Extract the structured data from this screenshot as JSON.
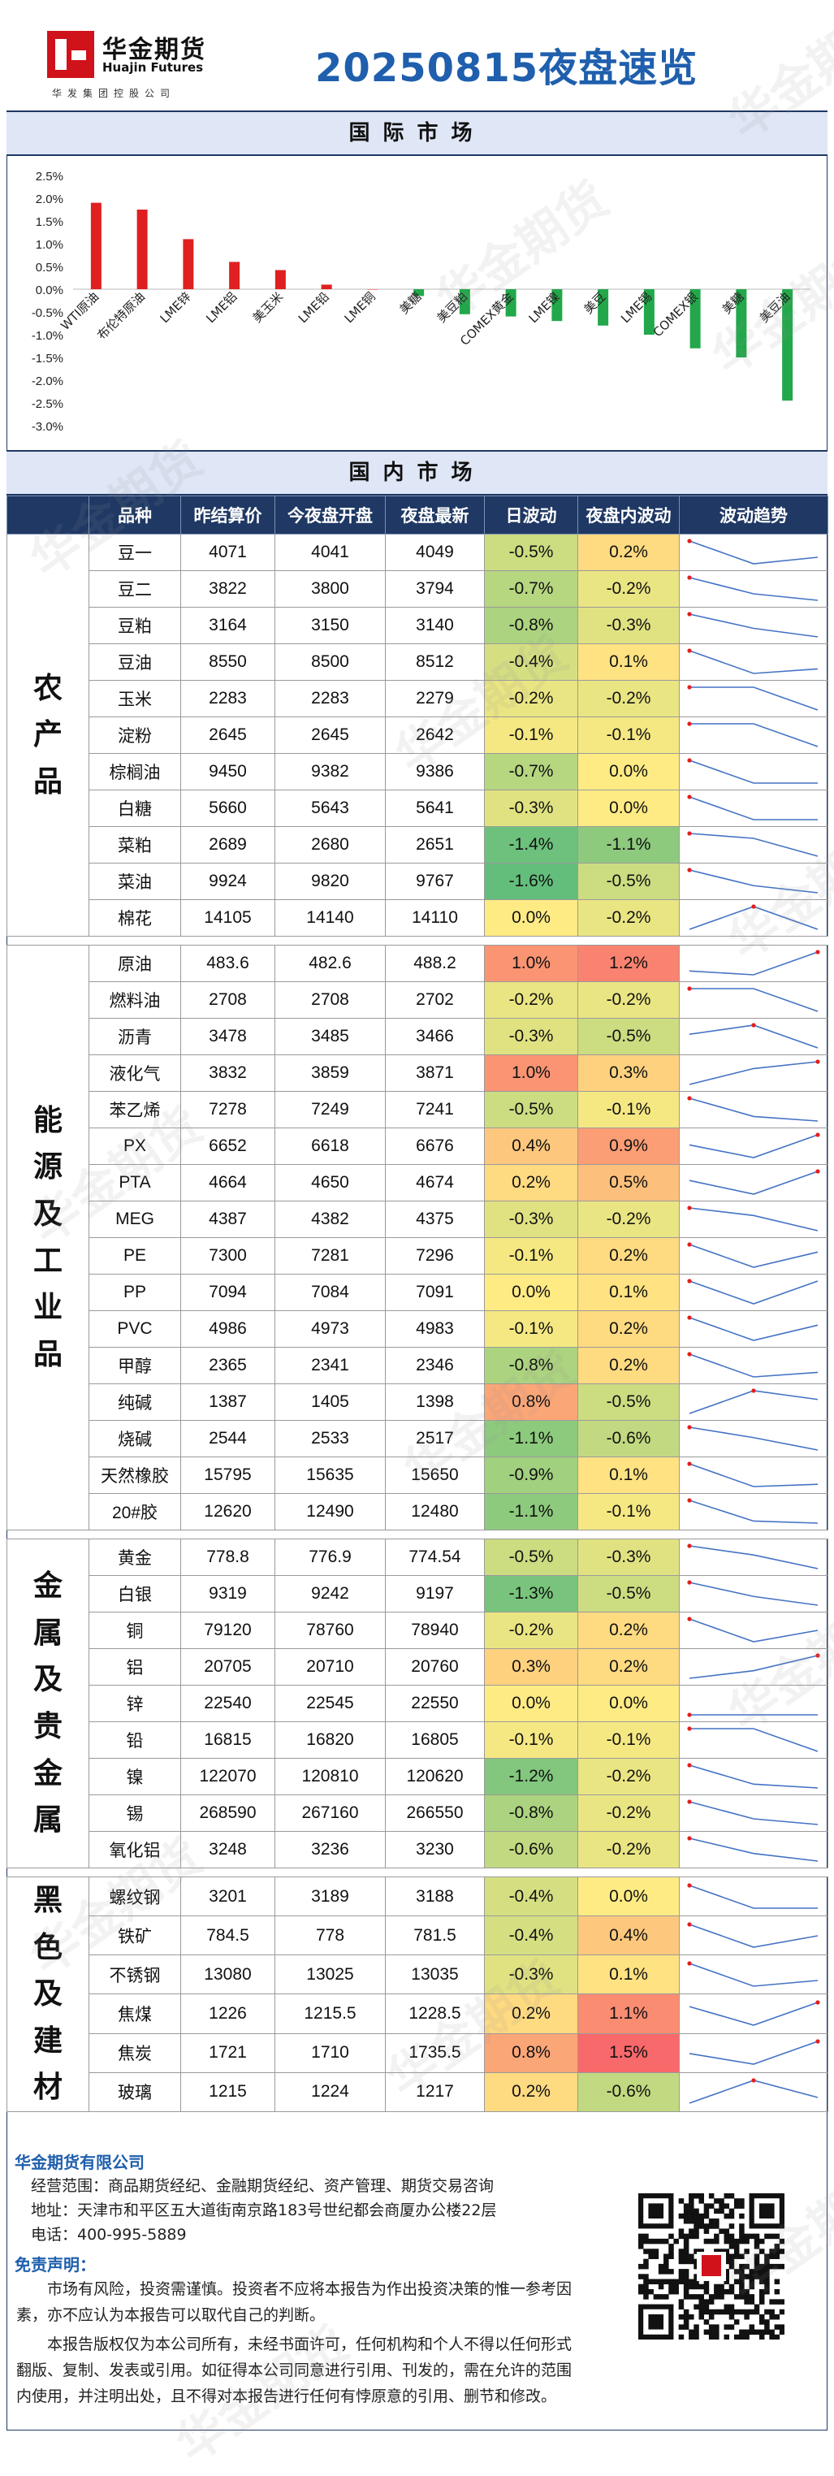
{
  "header": {
    "logo_cn": "华金期货",
    "logo_en": "Huajin Futures",
    "logo_sub": "华发集团控股公司",
    "title": "20250815夜盘速览"
  },
  "intl_section_title": "国际市场",
  "domestic_section_title": "国内市场",
  "chart_data": {
    "type": "bar",
    "title": "",
    "xlabel": "",
    "ylabel": "",
    "ylim": [
      -3.0,
      2.5
    ],
    "y_ticks": [
      "2.5%",
      "2.0%",
      "1.5%",
      "1.0%",
      "0.5%",
      "0.0%",
      "-0.5%",
      "-1.0%",
      "-1.5%",
      "-2.0%",
      "-2.5%",
      "-3.0%"
    ],
    "categories": [
      "WTI原油",
      "布伦特原油",
      "LME锌",
      "LME铝",
      "美玉米",
      "LME铅",
      "LME铜",
      "美糖",
      "美豆粕",
      "COMEX黄金",
      "LME镍",
      "美豆",
      "LME锡",
      "COMEX银",
      "美糖",
      "美豆油"
    ],
    "values": [
      1.9,
      1.75,
      1.1,
      0.6,
      0.42,
      0.1,
      0.0,
      -0.15,
      -0.55,
      -0.6,
      -0.7,
      -0.8,
      -1.0,
      -1.3,
      -1.5,
      -2.45
    ],
    "colors": {
      "positive": "#e02020",
      "negative": "#22a84a"
    }
  },
  "table": {
    "headers": [
      "品种",
      "昨结算价",
      "今夜盘开盘",
      "夜盘最新",
      "日波动",
      "夜盘内波动",
      "波动趋势"
    ],
    "groups": [
      {
        "category": "农产品",
        "rows": [
          {
            "name": "豆一",
            "prev": "4071",
            "open": "4041",
            "last": "4049",
            "day": "-0.5%",
            "night": "0.2%",
            "d": -0.5,
            "n": 0.2
          },
          {
            "name": "豆二",
            "prev": "3822",
            "open": "3800",
            "last": "3794",
            "day": "-0.7%",
            "night": "-0.2%",
            "d": -0.7,
            "n": -0.2
          },
          {
            "name": "豆粕",
            "prev": "3164",
            "open": "3150",
            "last": "3140",
            "day": "-0.8%",
            "night": "-0.3%",
            "d": -0.8,
            "n": -0.3
          },
          {
            "name": "豆油",
            "prev": "8550",
            "open": "8500",
            "last": "8512",
            "day": "-0.4%",
            "night": "0.1%",
            "d": -0.4,
            "n": 0.1
          },
          {
            "name": "玉米",
            "prev": "2283",
            "open": "2283",
            "last": "2279",
            "day": "-0.2%",
            "night": "-0.2%",
            "d": -0.2,
            "n": -0.2
          },
          {
            "name": "淀粉",
            "prev": "2645",
            "open": "2645",
            "last": "2642",
            "day": "-0.1%",
            "night": "-0.1%",
            "d": -0.1,
            "n": -0.1
          },
          {
            "name": "棕榈油",
            "prev": "9450",
            "open": "9382",
            "last": "9386",
            "day": "-0.7%",
            "night": "0.0%",
            "d": -0.7,
            "n": 0.0
          },
          {
            "name": "白糖",
            "prev": "5660",
            "open": "5643",
            "last": "5641",
            "day": "-0.3%",
            "night": "0.0%",
            "d": -0.3,
            "n": 0.0
          },
          {
            "name": "菜粕",
            "prev": "2689",
            "open": "2680",
            "last": "2651",
            "day": "-1.4%",
            "night": "-1.1%",
            "d": -1.4,
            "n": -1.1
          },
          {
            "name": "菜油",
            "prev": "9924",
            "open": "9820",
            "last": "9767",
            "day": "-1.6%",
            "night": "-0.5%",
            "d": -1.6,
            "n": -0.5
          },
          {
            "name": "棉花",
            "prev": "14105",
            "open": "14140",
            "last": "14110",
            "day": "0.0%",
            "night": "-0.2%",
            "d": 0.0,
            "n": -0.2
          }
        ]
      },
      {
        "category": "能源及工业品",
        "rows": [
          {
            "name": "原油",
            "prev": "483.6",
            "open": "482.6",
            "last": "488.2",
            "day": "1.0%",
            "night": "1.2%",
            "d": 1.0,
            "n": 1.2
          },
          {
            "name": "燃料油",
            "prev": "2708",
            "open": "2708",
            "last": "2702",
            "day": "-0.2%",
            "night": "-0.2%",
            "d": -0.2,
            "n": -0.2
          },
          {
            "name": "沥青",
            "prev": "3478",
            "open": "3485",
            "last": "3466",
            "day": "-0.3%",
            "night": "-0.5%",
            "d": -0.3,
            "n": -0.5
          },
          {
            "name": "液化气",
            "prev": "3832",
            "open": "3859",
            "last": "3871",
            "day": "1.0%",
            "night": "0.3%",
            "d": 1.0,
            "n": 0.3
          },
          {
            "name": "苯乙烯",
            "prev": "7278",
            "open": "7249",
            "last": "7241",
            "day": "-0.5%",
            "night": "-0.1%",
            "d": -0.5,
            "n": -0.1
          },
          {
            "name": "PX",
            "prev": "6652",
            "open": "6618",
            "last": "6676",
            "day": "0.4%",
            "night": "0.9%",
            "d": 0.4,
            "n": 0.9
          },
          {
            "name": "PTA",
            "prev": "4664",
            "open": "4650",
            "last": "4674",
            "day": "0.2%",
            "night": "0.5%",
            "d": 0.2,
            "n": 0.5
          },
          {
            "name": "MEG",
            "prev": "4387",
            "open": "4382",
            "last": "4375",
            "day": "-0.3%",
            "night": "-0.2%",
            "d": -0.3,
            "n": -0.2
          },
          {
            "name": "PE",
            "prev": "7300",
            "open": "7281",
            "last": "7296",
            "day": "-0.1%",
            "night": "0.2%",
            "d": -0.1,
            "n": 0.2
          },
          {
            "name": "PP",
            "prev": "7094",
            "open": "7084",
            "last": "7091",
            "day": "0.0%",
            "night": "0.1%",
            "d": 0.0,
            "n": 0.1
          },
          {
            "name": "PVC",
            "prev": "4986",
            "open": "4973",
            "last": "4983",
            "day": "-0.1%",
            "night": "0.2%",
            "d": -0.1,
            "n": 0.2
          },
          {
            "name": "甲醇",
            "prev": "2365",
            "open": "2341",
            "last": "2346",
            "day": "-0.8%",
            "night": "0.2%",
            "d": -0.8,
            "n": 0.2
          },
          {
            "name": "纯碱",
            "prev": "1387",
            "open": "1405",
            "last": "1398",
            "day": "0.8%",
            "night": "-0.5%",
            "d": 0.8,
            "n": -0.5
          },
          {
            "name": "烧碱",
            "prev": "2544",
            "open": "2533",
            "last": "2517",
            "day": "-1.1%",
            "night": "-0.6%",
            "d": -1.1,
            "n": -0.6
          },
          {
            "name": "天然橡胶",
            "prev": "15795",
            "open": "15635",
            "last": "15650",
            "day": "-0.9%",
            "night": "0.1%",
            "d": -0.9,
            "n": 0.1
          },
          {
            "name": "20#胶",
            "prev": "12620",
            "open": "12490",
            "last": "12480",
            "day": "-1.1%",
            "night": "-0.1%",
            "d": -1.1,
            "n": -0.1
          }
        ]
      },
      {
        "category": "金属及贵金属",
        "rows": [
          {
            "name": "黄金",
            "prev": "778.8",
            "open": "776.9",
            "last": "774.54",
            "day": "-0.5%",
            "night": "-0.3%",
            "d": -0.5,
            "n": -0.3
          },
          {
            "name": "白银",
            "prev": "9319",
            "open": "9242",
            "last": "9197",
            "day": "-1.3%",
            "night": "-0.5%",
            "d": -1.3,
            "n": -0.5
          },
          {
            "name": "铜",
            "prev": "79120",
            "open": "78760",
            "last": "78940",
            "day": "-0.2%",
            "night": "0.2%",
            "d": -0.2,
            "n": 0.2
          },
          {
            "name": "铝",
            "prev": "20705",
            "open": "20710",
            "last": "20760",
            "day": "0.3%",
            "night": "0.2%",
            "d": 0.3,
            "n": 0.2
          },
          {
            "name": "锌",
            "prev": "22540",
            "open": "22545",
            "last": "22550",
            "day": "0.0%",
            "night": "0.0%",
            "d": 0.0,
            "n": 0.0
          },
          {
            "name": "铅",
            "prev": "16815",
            "open": "16820",
            "last": "16805",
            "day": "-0.1%",
            "night": "-0.1%",
            "d": -0.1,
            "n": -0.1
          },
          {
            "name": "镍",
            "prev": "122070",
            "open": "120810",
            "last": "120620",
            "day": "-1.2%",
            "night": "-0.2%",
            "d": -1.2,
            "n": -0.2
          },
          {
            "name": "锡",
            "prev": "268590",
            "open": "267160",
            "last": "266550",
            "day": "-0.8%",
            "night": "-0.2%",
            "d": -0.8,
            "n": -0.2
          },
          {
            "name": "氧化铝",
            "prev": "3248",
            "open": "3236",
            "last": "3230",
            "day": "-0.6%",
            "night": "-0.2%",
            "d": -0.6,
            "n": -0.2
          }
        ]
      },
      {
        "category": "黑色及建材",
        "rows": [
          {
            "name": "螺纹钢",
            "prev": "3201",
            "open": "3189",
            "last": "3188",
            "day": "-0.4%",
            "night": "0.0%",
            "d": -0.4,
            "n": 0.0
          },
          {
            "name": "铁矿",
            "prev": "784.5",
            "open": "778",
            "last": "781.5",
            "day": "-0.4%",
            "night": "0.4%",
            "d": -0.4,
            "n": 0.4
          },
          {
            "name": "不锈钢",
            "prev": "13080",
            "open": "13025",
            "last": "13035",
            "day": "-0.3%",
            "night": "0.1%",
            "d": -0.3,
            "n": 0.1
          },
          {
            "name": "焦煤",
            "prev": "1226",
            "open": "1215.5",
            "last": "1228.5",
            "day": "0.2%",
            "night": "1.1%",
            "d": 0.2,
            "n": 1.1
          },
          {
            "name": "焦炭",
            "prev": "1721",
            "open": "1710",
            "last": "1735.5",
            "day": "0.8%",
            "night": "1.5%",
            "d": 0.8,
            "n": 1.5
          },
          {
            "name": "玻璃",
            "prev": "1215",
            "open": "1224",
            "last": "1217",
            "day": "0.2%",
            "night": "-0.6%",
            "d": 0.2,
            "n": -0.6
          }
        ]
      }
    ]
  },
  "footer": {
    "company": "华金期货有限公司",
    "scope": "经营范围：商品期货经纪、金融期货经纪、资产管理、期货交易咨询",
    "address": "地址：天津市和平区五大道街南京路183号世纪都会商厦办公楼22层",
    "phone": "电话：400-995-5889",
    "disclaimer_title": "免责声明：",
    "disclaimer_1": "市场有风险，投资需谨慎。投资者不应将本报告为作出投资决策的惟一参考因素，亦不应认为本报告可以取代自己的判断。",
    "disclaimer_2": "本报告版权仅为本公司所有，未经书面许可，任何机构和个人不得以任何形式翻版、复制、发表或引用。如征得本公司同意进行引用、刊发的，需在允许的范围内使用，并注明出处，且不得对本报告进行任何有悖原意的引用、删节和修改。"
  },
  "watermark": "华金期货"
}
